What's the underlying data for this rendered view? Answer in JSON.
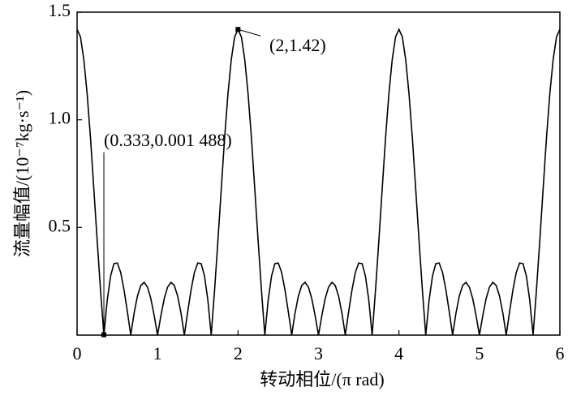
{
  "chart_data": {
    "type": "line",
    "xlabel": "转动相位/(π rad)",
    "ylabel": "流量幅值/(10⁻⁷kg·s⁻¹)",
    "x": [
      0,
      0.042,
      0.083,
      0.125,
      0.167,
      0.208,
      0.25,
      0.292,
      0.333,
      0.375,
      0.417,
      0.458,
      0.5,
      0.542,
      0.583,
      0.625,
      0.667,
      0.708,
      0.75,
      0.792,
      0.833,
      0.875,
      0.917,
      0.958,
      1,
      1.042,
      1.083,
      1.125,
      1.167,
      1.208,
      1.25,
      1.292,
      1.333,
      1.375,
      1.417,
      1.458,
      1.5,
      1.542,
      1.583,
      1.625,
      1.667,
      1.708,
      1.75,
      1.792,
      1.833,
      1.875,
      1.917,
      1.958,
      2,
      2.042,
      2.083,
      2.125,
      2.167,
      2.208,
      2.25,
      2.292,
      2.333,
      2.375,
      2.417,
      2.458,
      2.5,
      2.542,
      2.583,
      2.625,
      2.667,
      2.708,
      2.75,
      2.792,
      2.833,
      2.875,
      2.917,
      2.958,
      3,
      3.042,
      3.083,
      3.125,
      3.167,
      3.208,
      3.25,
      3.292,
      3.333,
      3.375,
      3.417,
      3.458,
      3.5,
      3.542,
      3.583,
      3.625,
      3.667,
      3.708,
      3.75,
      3.792,
      3.833,
      3.875,
      3.917,
      3.958,
      4,
      4.042,
      4.083,
      4.125,
      4.167,
      4.208,
      4.25,
      4.292,
      4.333,
      4.375,
      4.417,
      4.458,
      4.5,
      4.542,
      4.583,
      4.625,
      4.667,
      4.708,
      4.75,
      4.792,
      4.833,
      4.875,
      4.917,
      4.958,
      5,
      5.042,
      5.083,
      5.125,
      5.167,
      5.208,
      5.25,
      5.292,
      5.333,
      5.375,
      5.417,
      5.458,
      5.5,
      5.542,
      5.583,
      5.625,
      5.667,
      5.708,
      5.75,
      5.792,
      5.833,
      5.875,
      5.917,
      5.958,
      6
    ],
    "values": [
      1.42,
      1.385,
      1.282,
      1.121,
      0.914,
      0.68,
      0.437,
      0.205,
      0,
      0.163,
      0.275,
      0.332,
      0.335,
      0.291,
      0.211,
      0.109,
      0,
      0.101,
      0.181,
      0.231,
      0.245,
      0.223,
      0.169,
      0.091,
      0,
      0.091,
      0.169,
      0.223,
      0.245,
      0.231,
      0.181,
      0.101,
      0,
      0.109,
      0.211,
      0.291,
      0.335,
      0.332,
      0.275,
      0.163,
      0,
      0.205,
      0.437,
      0.68,
      0.914,
      1.121,
      1.282,
      1.385,
      1.42,
      1.385,
      1.282,
      1.121,
      0.914,
      0.68,
      0.437,
      0.205,
      0,
      0.163,
      0.275,
      0.332,
      0.335,
      0.291,
      0.211,
      0.109,
      0,
      0.101,
      0.181,
      0.231,
      0.245,
      0.223,
      0.169,
      0.091,
      0,
      0.091,
      0.169,
      0.223,
      0.245,
      0.231,
      0.181,
      0.101,
      0,
      0.109,
      0.211,
      0.291,
      0.335,
      0.332,
      0.275,
      0.163,
      0,
      0.205,
      0.437,
      0.68,
      0.914,
      1.121,
      1.282,
      1.385,
      1.42,
      1.385,
      1.282,
      1.121,
      0.914,
      0.68,
      0.437,
      0.205,
      0,
      0.163,
      0.275,
      0.332,
      0.335,
      0.291,
      0.211,
      0.109,
      0,
      0.101,
      0.181,
      0.231,
      0.245,
      0.223,
      0.169,
      0.091,
      0,
      0.091,
      0.169,
      0.223,
      0.245,
      0.231,
      0.181,
      0.101,
      0,
      0.109,
      0.211,
      0.291,
      0.335,
      0.332,
      0.275,
      0.163,
      0,
      0.205,
      0.437,
      0.68,
      0.914,
      1.121,
      1.282,
      1.385,
      1.42
    ],
    "color": "#000000",
    "xlim": [
      0,
      6
    ],
    "xticks": [
      0,
      1,
      2,
      3,
      4,
      5,
      6
    ],
    "ylim": [
      0,
      1.5
    ],
    "yticks": [
      0.5,
      {
        "value": 1,
        "label": "1.0"
      },
      1.5
    ],
    "annotations": [
      {
        "text": "(0.333,0.001 488)",
        "x": 0.333,
        "y": 0.001488
      },
      {
        "text": "(2,1.42)",
        "x": 2,
        "y": 1.42
      }
    ]
  }
}
